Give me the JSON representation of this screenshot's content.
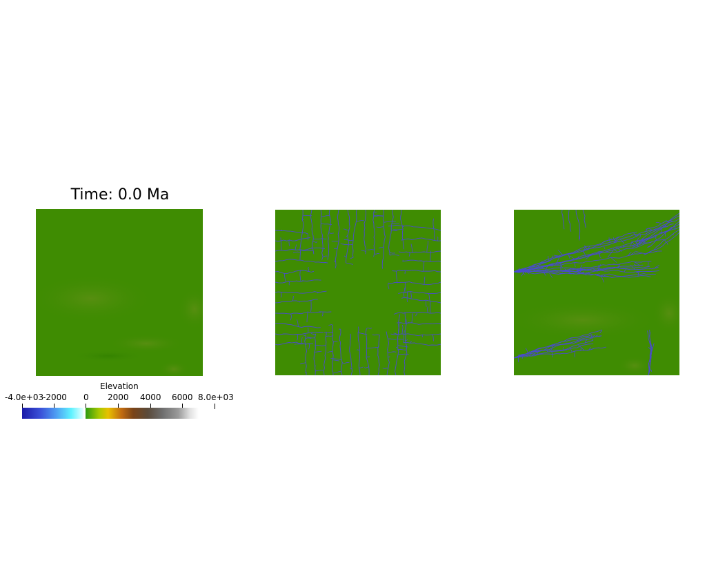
{
  "title": "Time: 0.0 Ma",
  "colorbar": {
    "title": "Elevation",
    "ticks": [
      "-4.0e+03",
      "-2000",
      "0",
      "2000",
      "4000",
      "6000",
      "8.0e+03"
    ],
    "colors": {
      "ocean_deep": "#1a1aa8",
      "ocean_shallow": "#5ef2ff",
      "land_low": "#2a9a10",
      "land_mid": "#c06a10",
      "land_high": "#ffffff"
    }
  },
  "views": {
    "terrain_color": "#3f8c02",
    "river_color": "#4a4ad0"
  }
}
